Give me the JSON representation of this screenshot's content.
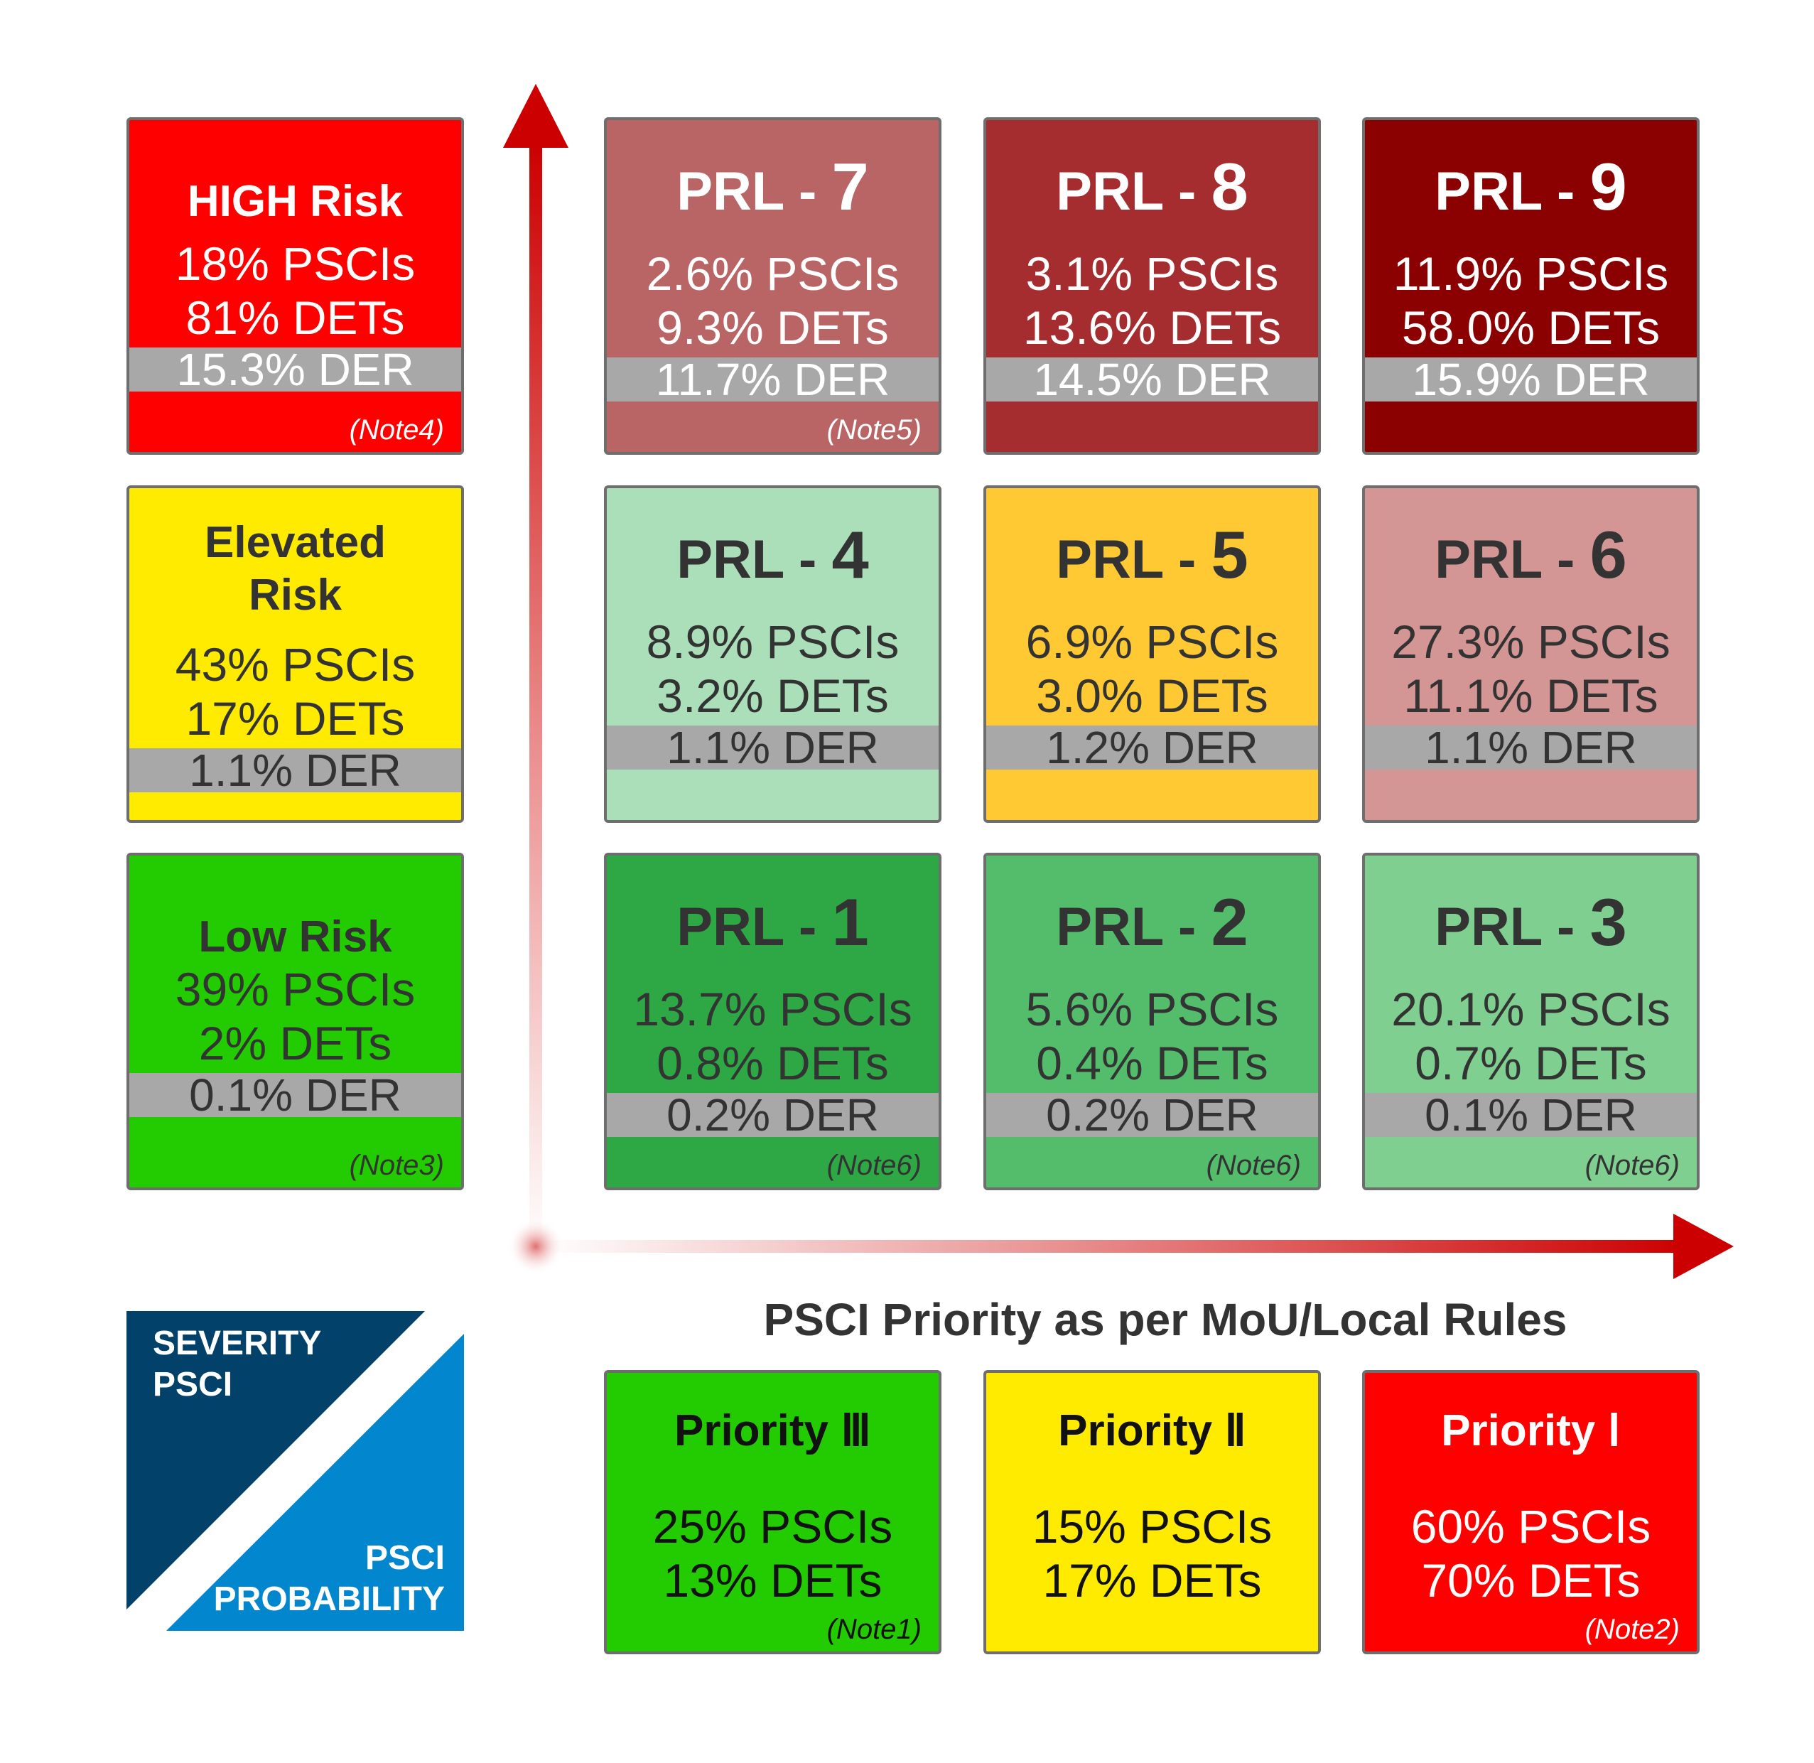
{
  "risk_levels": [
    {
      "title_lines": [
        "HIGH Risk"
      ],
      "pscis": "18% PSCIs",
      "dets": "81% DETs",
      "der": "15.3% DER",
      "note": "(Note4)",
      "color": "#ff0000",
      "text_color": "#ffffff"
    },
    {
      "title_lines": [
        "Elevated",
        "Risk"
      ],
      "pscis": "43% PSCIs",
      "dets": "17% DETs",
      "der": "1.1% DER",
      "note": "",
      "color": "#ffeb00",
      "text_color": "#333333"
    },
    {
      "title_lines": [
        "Low Risk"
      ],
      "pscis": "39% PSCIs",
      "dets": "2% DETs",
      "der": "0.1% DER",
      "note": "(Note3)",
      "color": "#22cc00",
      "text_color": "#333333"
    }
  ],
  "prl_prefix": "PRL - ",
  "prl": [
    {
      "num": "7",
      "pscis": "2.6% PSCIs",
      "dets": "9.3% DETs",
      "der": "11.7% DER",
      "note": "(Note5)",
      "color": "#b96565",
      "text_color": "#ffffff"
    },
    {
      "num": "8",
      "pscis": "3.1% PSCIs",
      "dets": "13.6% DETs",
      "der": "14.5% DER",
      "note": "",
      "color": "#a52d2f",
      "text_color": "#ffffff"
    },
    {
      "num": "9",
      "pscis": "11.9% PSCIs",
      "dets": "58.0% DETs",
      "der": "15.9% DER",
      "note": "",
      "color": "#8b0000",
      "text_color": "#ffffff"
    },
    {
      "num": "4",
      "pscis": "8.9% PSCIs",
      "dets": "3.2% DETs",
      "der": "1.1% DER",
      "note": "",
      "color": "#abdfb9",
      "text_color": "#333333"
    },
    {
      "num": "5",
      "pscis": "6.9% PSCIs",
      "dets": "3.0% DETs",
      "der": "1.2% DER",
      "note": "",
      "color": "#ffc933",
      "text_color": "#333333"
    },
    {
      "num": "6",
      "pscis": "27.3% PSCIs",
      "dets": "11.1% DETs",
      "der": "1.1% DER",
      "note": "",
      "color": "#d49694",
      "text_color": "#333333"
    },
    {
      "num": "1",
      "pscis": "13.7% PSCIs",
      "dets": "0.8% DETs",
      "der": "0.2% DER",
      "note": "(Note6)",
      "color": "#2da845",
      "text_color": "#333333"
    },
    {
      "num": "2",
      "pscis": "5.6% PSCIs",
      "dets": "0.4% DETs",
      "der": "0.2% DER",
      "note": "(Note6)",
      "color": "#53bd6c",
      "text_color": "#333333"
    },
    {
      "num": "3",
      "pscis": "20.1% PSCIs",
      "dets": "0.7% DETs",
      "der": "0.1% DER",
      "note": "(Note6)",
      "color": "#7fcf91",
      "text_color": "#333333"
    }
  ],
  "axis_label": "PSCI Priority as per MoU/Local Rules",
  "priorities": [
    {
      "title": "Priority Ⅲ",
      "pscis": "25% PSCIs",
      "dets": "13% DETs",
      "note": "(Note1)",
      "color": "#22cc00",
      "text_color": "#111111"
    },
    {
      "title": "Priority Ⅱ",
      "pscis": "15% PSCIs",
      "dets": "17% DETs",
      "note": "",
      "color": "#ffeb00",
      "text_color": "#111111"
    },
    {
      "title": "Priority Ⅰ",
      "pscis": "60% PSCIs",
      "dets": "70% DETs",
      "note": "(Note2)",
      "color": "#ff0000",
      "text_color": "#ffffff"
    }
  ],
  "severity_lines": [
    "SEVERITY",
    "PSCI"
  ],
  "probability_lines": [
    "PSCI",
    "PROBABILITY"
  ],
  "colors": {
    "axis": "#cc0000",
    "severity": "#02426a",
    "probability": "#0286cd",
    "der_band": "#a8a8a8"
  }
}
